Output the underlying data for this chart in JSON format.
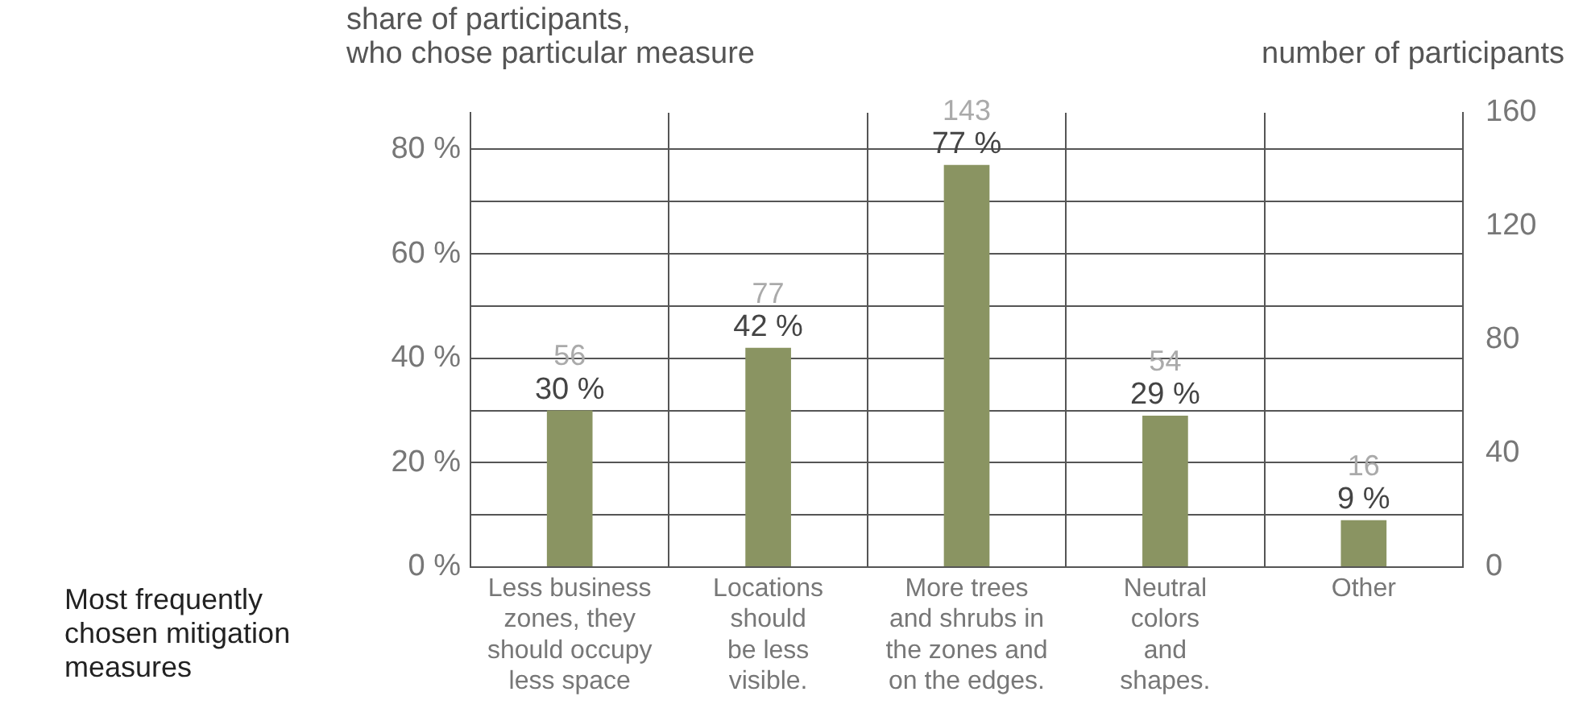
{
  "chart_data": {
    "type": "bar",
    "ylabel": "share of participants,\nwho chose particular measure",
    "y2label": "number of participants",
    "xlabel": "Most frequently chosen mitigation measures",
    "categories": [
      "Less business\nzones, they\nshould occupy\nless space",
      "Locations\nshould\nbe less\nvisible.",
      "More trees\nand shrubs in\nthe zones and\non the edges.",
      "Neutral\ncolors\nand\nshapes.",
      "Other"
    ],
    "values": [
      30,
      42,
      77,
      29,
      9
    ],
    "color": "#8a9462",
    "value_labels": [
      "30 %",
      "42 %",
      "77 %",
      "29 %",
      "9 %"
    ],
    "annotations": [
      {
        "text": "56",
        "x": "Less business\nzones, they\nshould occupy\nless space",
        "y": 30
      },
      {
        "text": "77",
        "x": "Locations\nshould\nbe less\nvisible.",
        "y": 42
      },
      {
        "text": "143",
        "x": "More trees\nand shrubs in\nthe zones and\non the edges.",
        "y": 77
      },
      {
        "text": "54",
        "x": "Neutral\ncolors\nand\nshapes.",
        "y": 29
      },
      {
        "text": "16",
        "x": "Other",
        "y": 9
      }
    ],
    "ylim": [
      0,
      87
    ],
    "yticks": [
      {
        "value": 0,
        "label": "0 %"
      },
      {
        "value": 10,
        "label": null
      },
      {
        "value": 20,
        "label": "20 %"
      },
      {
        "value": 30,
        "label": null
      },
      {
        "value": 40,
        "label": "40 %"
      },
      {
        "value": 50,
        "label": null
      },
      {
        "value": 60,
        "label": "60 %"
      },
      {
        "value": 70,
        "label": null
      },
      {
        "value": 80,
        "label": "80 %"
      }
    ],
    "y2lim": [
      0,
      160
    ],
    "y2ticks": [
      0,
      40,
      80,
      120,
      160
    ],
    "grid": true,
    "legend": false
  }
}
